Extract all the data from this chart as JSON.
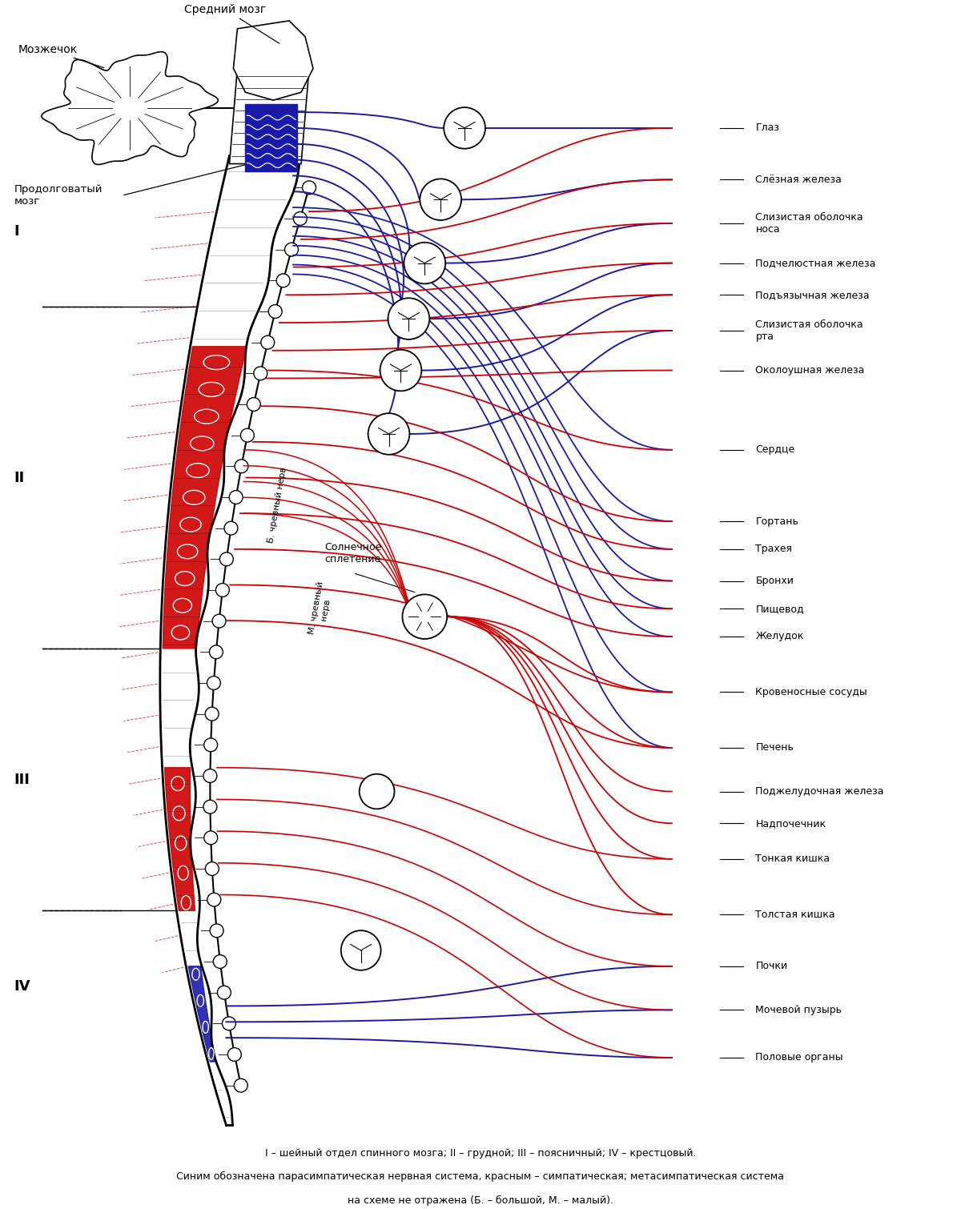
{
  "bg_color": "#ffffff",
  "caption_line1": "I – шейный отдел спинного мозга; II – грудной; III – поясничный; IV – крестцовый.",
  "caption_line2": "Синим обозначена парасимпатическая нервная система, красным – симпатическая; метасимпатическая система",
  "caption_line3": "на схеме не отражена (Б. – большой, М. – малый).",
  "label_mozzhechok": "Мозжечок",
  "label_sredniy": "Средний мозг",
  "label_prodolgovaty": "Продолговатый\nмозг",
  "label_solnechnoe": "Солнечное\nсплетение",
  "label_b_chrevny": "Б. чревный нерв",
  "label_m_chrevny": "М. чревный\nнерв",
  "roman_labels": [
    "I",
    "II",
    "III",
    "IV"
  ],
  "organ_labels": [
    "Глаз",
    "Слёзная железа",
    "Слизистая оболочка\nноса",
    "Подчелюстная железа",
    "Подъязычная железа",
    "Слизистая оболочка\nрта",
    "Околоушная железа",
    "Сердце",
    "Гортань",
    "Трахея",
    "Бронхи",
    "Пищевод",
    "Желудок",
    "Кровеносные сосуды",
    "Печень",
    "Поджелудочная железа",
    "Надпочечник",
    "Тонкая кишка",
    "Толстая кишка",
    "Почки",
    "Мочевой пузырь",
    "Половые органы"
  ],
  "sympathetic_color": "#cc0000",
  "parasympathetic_color": "#1a1aaa",
  "spine_color": "#000000"
}
